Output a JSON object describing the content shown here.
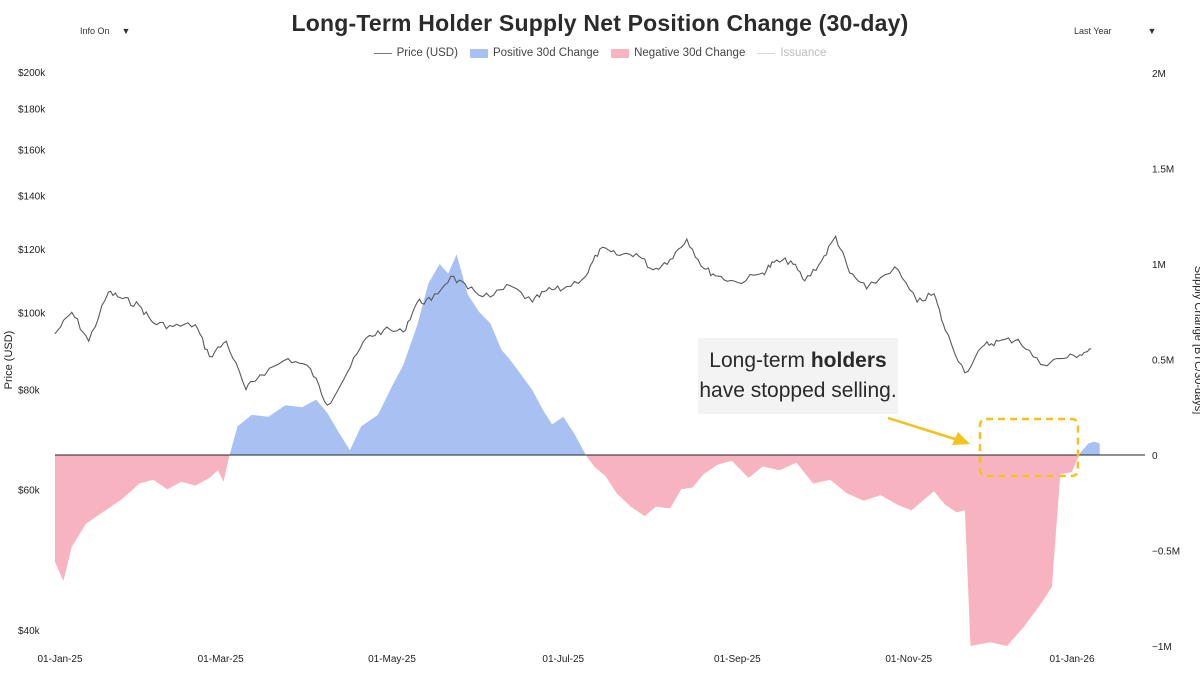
{
  "toolbar": {
    "info_label": "Info On",
    "range_label": "Last Year"
  },
  "colors": {
    "price_line": "#5a5a5a",
    "positive": "#a9c1f2",
    "negative": "#f8b3c1",
    "issuance": "#d7d7d7",
    "highlight": "#f3c21c",
    "zero_line": "#222222"
  },
  "annotation": {
    "line1_prefix": "Long-term ",
    "line1_bold": "holders",
    "line2": "have stopped selling."
  },
  "chart_data": {
    "type": "area",
    "title": "Long-Term Holder Supply Net Position Change (30-day)",
    "legend": [
      "Price (USD)",
      "Positive 30d Change",
      "Negative 30d Change",
      "Issuance"
    ],
    "legend_placement": "top-center",
    "grid": false,
    "x_ticks": [
      "01-Jan-25",
      "01-Mar-25",
      "01-May-25",
      "01-Jul-25",
      "01-Sep-25",
      "01-Nov-25",
      "01-Jan-26"
    ],
    "y_left": {
      "label": "Price (USD)",
      "scale": "log",
      "ticks": [
        "$200k",
        "$180k",
        "$160k",
        "$140k",
        "$120k",
        "$100k",
        "$80k",
        "$60k",
        "$40k"
      ],
      "tick_values": [
        200000,
        180000,
        160000,
        140000,
        120000,
        100000,
        80000,
        60000,
        40000
      ]
    },
    "y_right": {
      "label": "Supply Change [BTC/30-days]",
      "ticks": [
        "2M",
        "1.5M",
        "1M",
        "0.5M",
        "0",
        "−0.5M",
        "−1M"
      ],
      "tick_values": [
        2000000,
        1500000,
        1000000,
        500000,
        0,
        -500000,
        -1000000
      ]
    },
    "series": [
      {
        "name": "Price (USD)",
        "axis": "left",
        "points": [
          [
            "2025-01-01",
            94000
          ],
          [
            "2025-01-07",
            100000
          ],
          [
            "2025-01-13",
            92000
          ],
          [
            "2025-01-20",
            106000
          ],
          [
            "2025-01-25",
            104000
          ],
          [
            "2025-01-31",
            102000
          ],
          [
            "2025-02-05",
            97000
          ],
          [
            "2025-02-12",
            96000
          ],
          [
            "2025-02-20",
            96500
          ],
          [
            "2025-02-25",
            88000
          ],
          [
            "2025-03-03",
            92000
          ],
          [
            "2025-03-10",
            80000
          ],
          [
            "2025-03-15",
            83500
          ],
          [
            "2025-03-25",
            87500
          ],
          [
            "2025-04-02",
            85000
          ],
          [
            "2025-04-08",
            76500
          ],
          [
            "2025-04-15",
            84000
          ],
          [
            "2025-04-22",
            93000
          ],
          [
            "2025-04-28",
            95000
          ],
          [
            "2025-05-05",
            94500
          ],
          [
            "2025-05-10",
            103000
          ],
          [
            "2025-05-15",
            103500
          ],
          [
            "2025-05-22",
            111000
          ],
          [
            "2025-05-28",
            107000
          ],
          [
            "2025-06-05",
            104500
          ],
          [
            "2025-06-12",
            108000
          ],
          [
            "2025-06-20",
            103000
          ],
          [
            "2025-06-25",
            106500
          ],
          [
            "2025-07-01",
            107000
          ],
          [
            "2025-07-09",
            111000
          ],
          [
            "2025-07-14",
            120000
          ],
          [
            "2025-07-20",
            118000
          ],
          [
            "2025-07-27",
            118500
          ],
          [
            "2025-08-02",
            113000
          ],
          [
            "2025-08-08",
            116500
          ],
          [
            "2025-08-14",
            123500
          ],
          [
            "2025-08-20",
            113500
          ],
          [
            "2025-08-25",
            111000
          ],
          [
            "2025-09-01",
            109000
          ],
          [
            "2025-09-10",
            112000
          ],
          [
            "2025-09-14",
            115500
          ],
          [
            "2025-09-20",
            116000
          ],
          [
            "2025-09-25",
            109500
          ],
          [
            "2025-10-01",
            116000
          ],
          [
            "2025-10-06",
            124500
          ],
          [
            "2025-10-11",
            112000
          ],
          [
            "2025-10-17",
            107000
          ],
          [
            "2025-10-27",
            114000
          ],
          [
            "2025-11-04",
            103000
          ],
          [
            "2025-11-10",
            105500
          ],
          [
            "2025-11-14",
            95000
          ],
          [
            "2025-11-21",
            84000
          ],
          [
            "2025-11-28",
            91000
          ],
          [
            "2025-12-03",
            92000
          ],
          [
            "2025-12-10",
            92500
          ],
          [
            "2025-12-18",
            86000
          ],
          [
            "2025-12-25",
            87500
          ],
          [
            "2026-01-01",
            88500
          ],
          [
            "2026-01-05",
            90000
          ]
        ]
      },
      {
        "name": "Supply Change",
        "axis": "right",
        "note": "positive values fill blue, negative values fill pink",
        "points": [
          [
            "2025-01-01",
            -560000
          ],
          [
            "2025-01-04",
            -660000
          ],
          [
            "2025-01-07",
            -480000
          ],
          [
            "2025-01-12",
            -360000
          ],
          [
            "2025-01-18",
            -300000
          ],
          [
            "2025-01-25",
            -230000
          ],
          [
            "2025-01-31",
            -150000
          ],
          [
            "2025-02-05",
            -130000
          ],
          [
            "2025-02-10",
            -180000
          ],
          [
            "2025-02-15",
            -140000
          ],
          [
            "2025-02-20",
            -160000
          ],
          [
            "2025-02-25",
            -120000
          ],
          [
            "2025-02-28",
            -80000
          ],
          [
            "2025-03-02",
            -140000
          ],
          [
            "2025-03-04",
            -10000
          ],
          [
            "2025-03-07",
            150000
          ],
          [
            "2025-03-12",
            210000
          ],
          [
            "2025-03-18",
            200000
          ],
          [
            "2025-03-24",
            260000
          ],
          [
            "2025-03-30",
            250000
          ],
          [
            "2025-04-04",
            290000
          ],
          [
            "2025-04-08",
            220000
          ],
          [
            "2025-04-12",
            120000
          ],
          [
            "2025-04-16",
            25000
          ],
          [
            "2025-04-20",
            150000
          ],
          [
            "2025-04-26",
            210000
          ],
          [
            "2025-05-01",
            360000
          ],
          [
            "2025-05-05",
            470000
          ],
          [
            "2025-05-10",
            680000
          ],
          [
            "2025-05-14",
            900000
          ],
          [
            "2025-05-18",
            1000000
          ],
          [
            "2025-05-21",
            950000
          ],
          [
            "2025-05-24",
            1050000
          ],
          [
            "2025-05-28",
            840000
          ],
          [
            "2025-06-01",
            750000
          ],
          [
            "2025-06-05",
            690000
          ],
          [
            "2025-06-09",
            550000
          ],
          [
            "2025-06-12",
            500000
          ],
          [
            "2025-06-16",
            420000
          ],
          [
            "2025-06-20",
            340000
          ],
          [
            "2025-06-24",
            230000
          ],
          [
            "2025-06-27",
            160000
          ],
          [
            "2025-07-01",
            200000
          ],
          [
            "2025-07-05",
            110000
          ],
          [
            "2025-07-09",
            0
          ],
          [
            "2025-07-12",
            -60000
          ],
          [
            "2025-07-16",
            -110000
          ],
          [
            "2025-07-20",
            -200000
          ],
          [
            "2025-07-25",
            -270000
          ],
          [
            "2025-07-30",
            -320000
          ],
          [
            "2025-08-03",
            -270000
          ],
          [
            "2025-08-08",
            -280000
          ],
          [
            "2025-08-12",
            -180000
          ],
          [
            "2025-08-16",
            -170000
          ],
          [
            "2025-08-20",
            -100000
          ],
          [
            "2025-08-25",
            -50000
          ],
          [
            "2025-08-30",
            -30000
          ],
          [
            "2025-09-05",
            -120000
          ],
          [
            "2025-09-10",
            -60000
          ],
          [
            "2025-09-16",
            -80000
          ],
          [
            "2025-09-22",
            -40000
          ],
          [
            "2025-09-28",
            -150000
          ],
          [
            "2025-10-04",
            -130000
          ],
          [
            "2025-10-10",
            -200000
          ],
          [
            "2025-10-16",
            -240000
          ],
          [
            "2025-10-22",
            -210000
          ],
          [
            "2025-10-28",
            -260000
          ],
          [
            "2025-11-02",
            -290000
          ],
          [
            "2025-11-06",
            -240000
          ],
          [
            "2025-11-10",
            -190000
          ],
          [
            "2025-11-14",
            -260000
          ],
          [
            "2025-11-18",
            -300000
          ],
          [
            "2025-11-21",
            -290000
          ],
          [
            "2025-11-23",
            -1000000
          ],
          [
            "2025-11-30",
            -980000
          ],
          [
            "2025-12-06",
            -1000000
          ],
          [
            "2025-12-12",
            -900000
          ],
          [
            "2025-12-18",
            -780000
          ],
          [
            "2025-12-22",
            -690000
          ],
          [
            "2025-12-25",
            -100000
          ],
          [
            "2025-12-29",
            -90000
          ],
          [
            "2026-01-01",
            10000
          ],
          [
            "2026-01-04",
            60000
          ],
          [
            "2026-01-06",
            70000
          ],
          [
            "2026-01-08",
            60000
          ]
        ]
      }
    ]
  }
}
